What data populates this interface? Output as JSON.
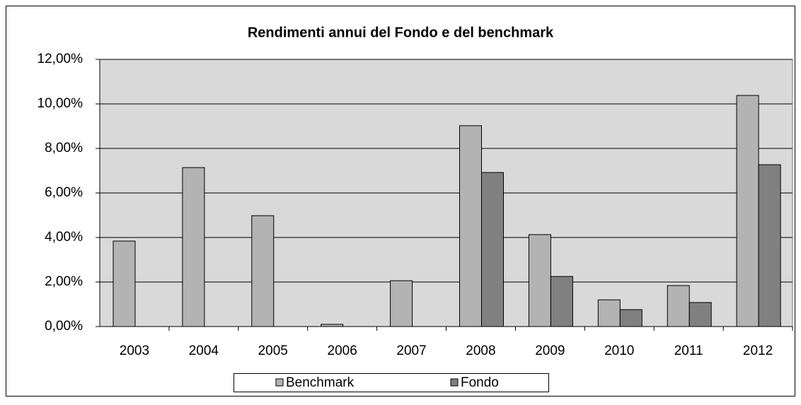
{
  "chart_data": {
    "type": "bar",
    "title": "Rendimenti annui del Fondo e  del benchmark",
    "categories": [
      "2003",
      "2004",
      "2005",
      "2006",
      "2007",
      "2008",
      "2009",
      "2010",
      "2011",
      "2012"
    ],
    "series": [
      {
        "name": "Benchmark",
        "color": "#b3b3b3",
        "values": [
          3.84,
          7.14,
          4.98,
          0.1,
          2.06,
          9.02,
          4.13,
          1.2,
          1.84,
          10.38
        ]
      },
      {
        "name": "Fondo",
        "color": "#808080",
        "values": [
          null,
          null,
          null,
          null,
          null,
          6.92,
          2.25,
          0.76,
          1.08,
          7.27
        ]
      }
    ],
    "ylim": [
      0,
      12
    ],
    "yticks": [
      {
        "value": 0,
        "label": "0,00%"
      },
      {
        "value": 2,
        "label": "2,00%"
      },
      {
        "value": 4,
        "label": "4,00%"
      },
      {
        "value": 6,
        "label": "6,00%"
      },
      {
        "value": 8,
        "label": "8,00%"
      },
      {
        "value": 10,
        "label": "10,00%"
      },
      {
        "value": 12,
        "label": "12,00%"
      }
    ],
    "grid": true,
    "legend": "bottom"
  }
}
